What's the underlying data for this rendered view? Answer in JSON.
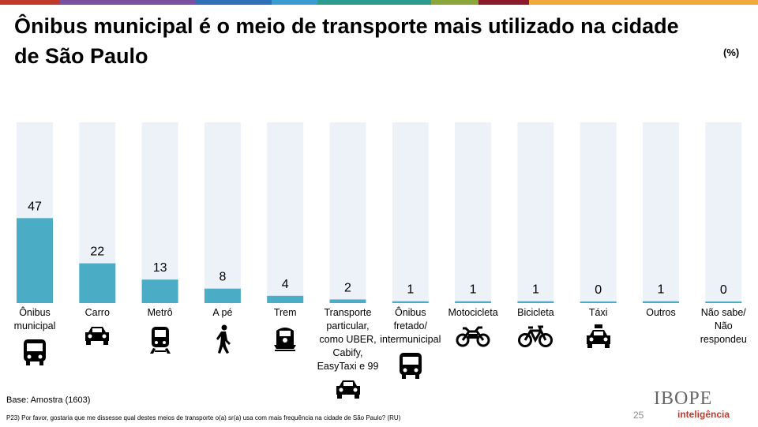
{
  "header": {
    "title": "Ônibus municipal é o meio de transporte mais utilizado na cidade de São Paulo",
    "unit": "(%)"
  },
  "topbar_colors": [
    "#c0392b",
    "#7b4fa0",
    "#2e6fb5",
    "#3a9bd1",
    "#2a9d8f",
    "#8aa63a",
    "#8b1a2b",
    "#f2a93b"
  ],
  "chart_data": {
    "type": "bar",
    "categories": [
      "Ônibus municipal",
      "Carro",
      "Metrô",
      "A pé",
      "Trem",
      "Transporte particular, como UBER, Cabify, EasyTaxi e 99",
      "Ônibus fretado/ intermunicipal",
      "Motocicleta",
      "Bicicleta",
      "Táxi",
      "Outros",
      "Não sabe/ Não respondeu"
    ],
    "category_lines": [
      [
        "Ônibus",
        "municipal"
      ],
      [
        "Carro"
      ],
      [
        "Metrô"
      ],
      [
        "A pé"
      ],
      [
        "Trem"
      ],
      [
        "Transporte",
        "particular,",
        "como UBER,",
        "Cabify,",
        "EasyTaxi e 99"
      ],
      [
        "Ônibus",
        "fretado/",
        "intermunicipal"
      ],
      [
        "Motocicleta"
      ],
      [
        "Bicicleta"
      ],
      [
        "Táxi"
      ],
      [
        "Outros"
      ],
      [
        "Não sabe/",
        "Não",
        "respondeu"
      ]
    ],
    "values": [
      47,
      22,
      13,
      8,
      4,
      2,
      1,
      1,
      1,
      0,
      1,
      0
    ],
    "ylim": [
      0,
      100
    ],
    "icons": [
      "bus-icon",
      "car-icon",
      "metro-train-icon",
      "walking-person-icon",
      "train-icon",
      "car-icon",
      "bus-icon",
      "motorcycle-icon",
      "bicycle-icon",
      "taxi-icon",
      "",
      ""
    ],
    "bar_color": "#4bacc6",
    "track_color": "#edf2f9"
  },
  "footer": {
    "base": "Base: Amostra (1603)",
    "question": "P23) Por favor, gostaria que me dissesse qual destes meios de transporte o(a) sr(a) usa com mais frequência na cidade de São Paulo? (RU)",
    "page_number": "25",
    "logo_main": "IBOPE",
    "logo_sub": "inteligência"
  }
}
